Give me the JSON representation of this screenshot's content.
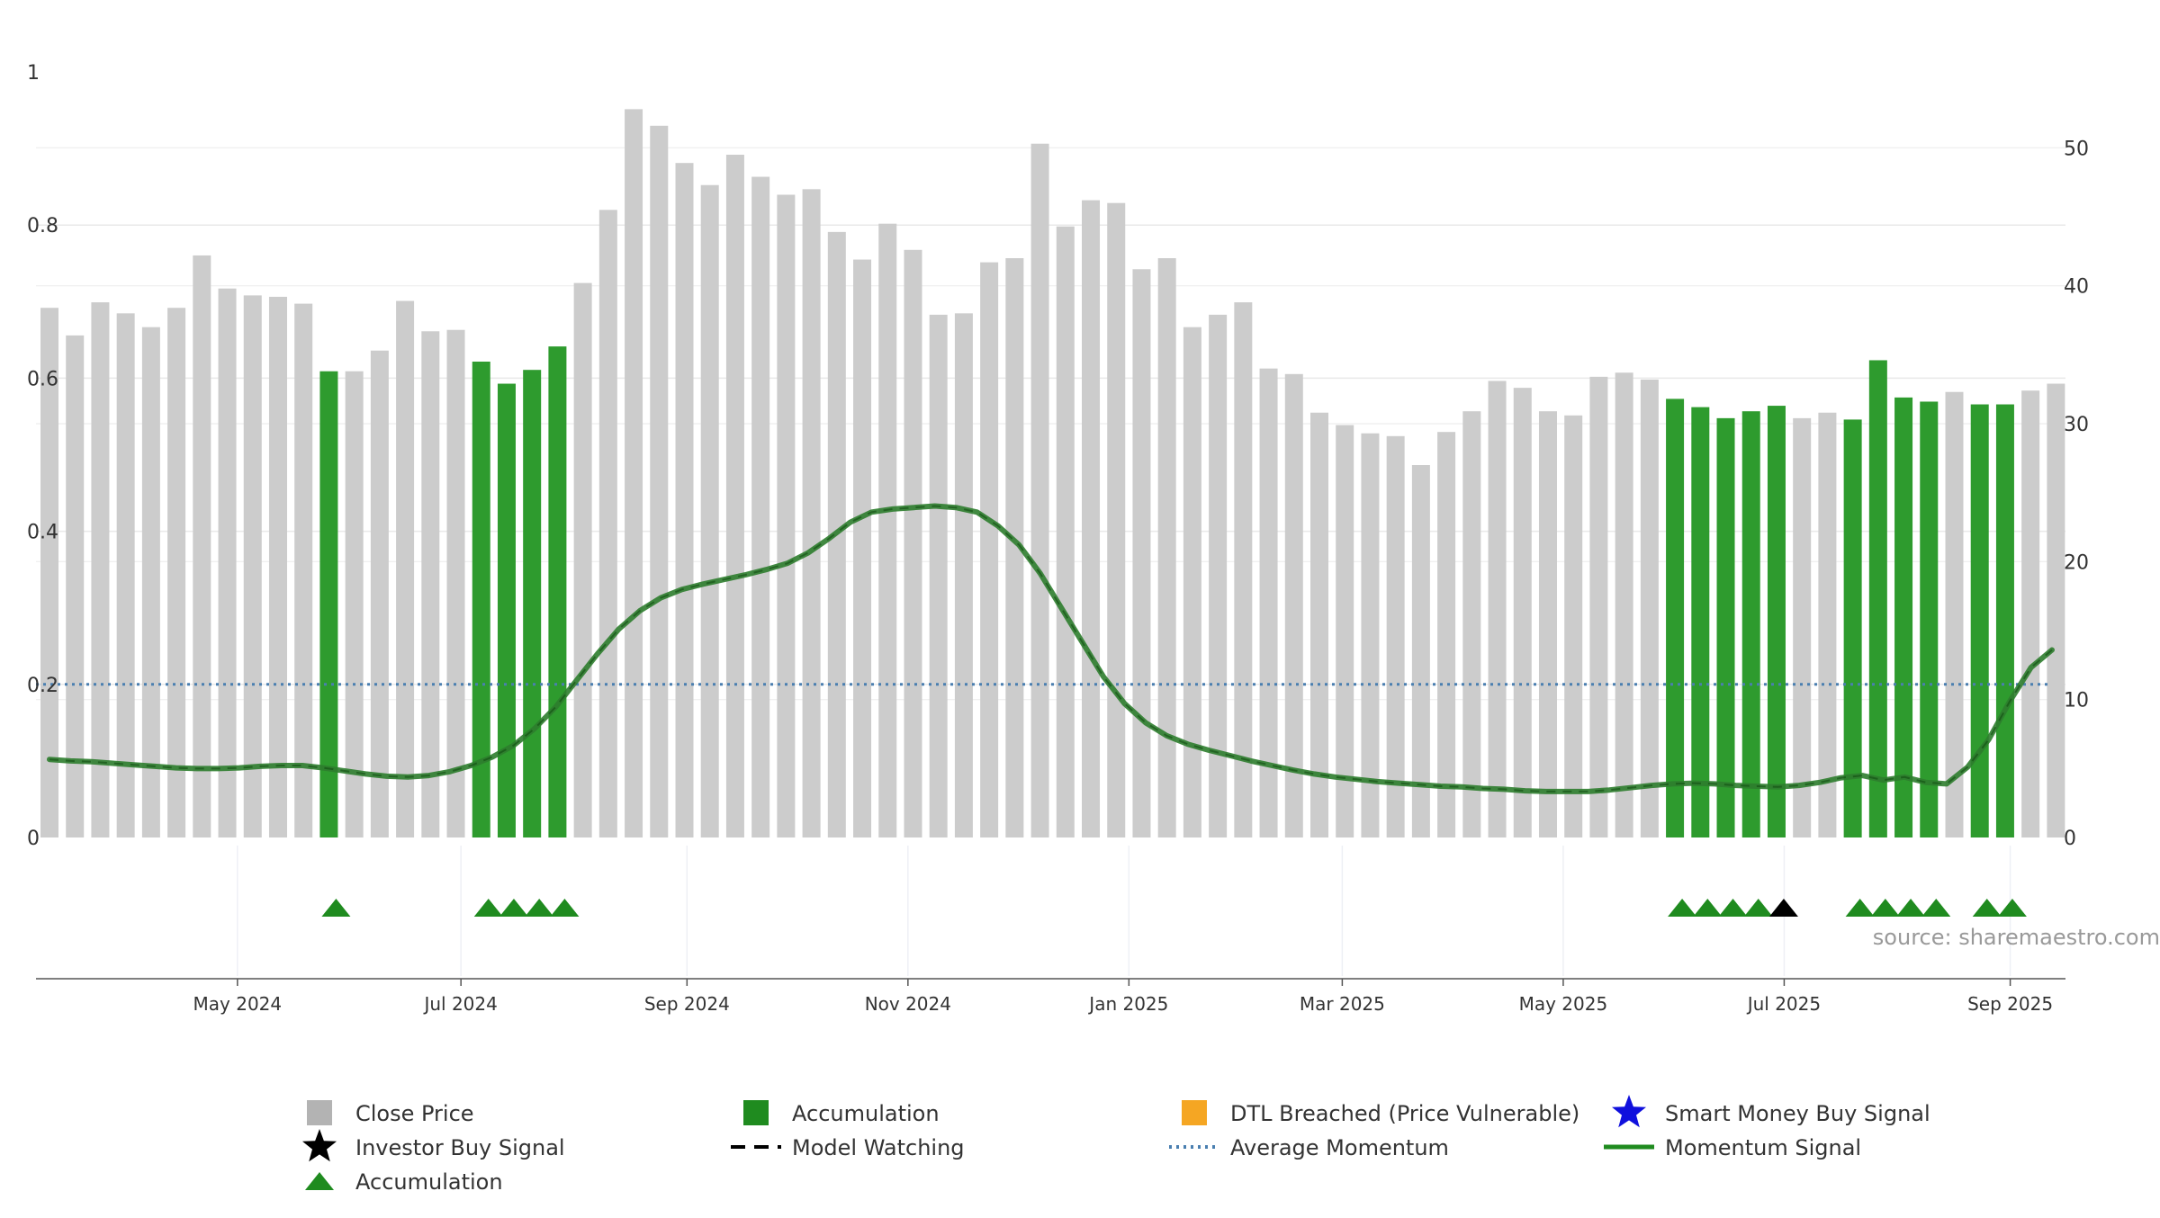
{
  "chart_data": {
    "type": "bar",
    "title": "",
    "source": "source: sharemaestro.com",
    "left_axis": {
      "ylim": [
        0,
        1
      ],
      "ticks": [
        "0",
        "0.2",
        "0.4",
        "0.6",
        "0.8",
        "1"
      ],
      "tick_values": [
        0,
        0.2,
        0.4,
        0.6,
        0.8,
        1
      ]
    },
    "right_axis": {
      "ylim": [
        0,
        55.5
      ],
      "ticks": [
        "0",
        "10",
        "20",
        "30",
        "40",
        "50"
      ],
      "tick_values": [
        0,
        10,
        20,
        30,
        40,
        50
      ]
    },
    "x_axis": {
      "n_weeks": 80,
      "date_labels": [
        "May 2024",
        "Jul 2024",
        "Sep 2024",
        "Nov 2024",
        "Jan 2025",
        "Mar 2025",
        "May 2025",
        "Jul 2025",
        "Sep 2025"
      ],
      "date_positions": [
        7.4,
        16.2,
        25.1,
        33.8,
        42.5,
        50.9,
        59.6,
        68.3,
        77.2
      ]
    },
    "series": [
      {
        "name": "Close Price",
        "type": "bar",
        "axis": "right",
        "color": "#cccccc",
        "values": [
          38.4,
          36.4,
          38.8,
          38.0,
          37.0,
          38.4,
          42.2,
          39.8,
          39.3,
          39.2,
          38.7,
          33.8,
          33.8,
          35.3,
          38.9,
          36.7,
          36.8,
          34.5,
          32.9,
          33.9,
          35.6,
          40.2,
          45.5,
          52.8,
          51.6,
          48.9,
          47.3,
          49.5,
          47.9,
          46.6,
          47.0,
          43.9,
          41.9,
          44.5,
          42.6,
          37.9,
          38.0,
          41.7,
          42.0,
          50.3,
          44.3,
          46.2,
          46.0,
          41.2,
          42.0,
          37.0,
          37.9,
          38.8,
          34.0,
          33.6,
          30.8,
          29.9,
          29.3,
          29.1,
          27.0,
          29.4,
          30.9,
          33.1,
          32.6,
          30.9,
          30.6,
          33.4,
          33.7,
          33.2,
          31.8,
          31.2,
          30.4,
          30.9,
          31.3,
          30.4,
          30.8,
          30.3,
          34.6,
          31.9,
          31.6,
          32.3,
          31.4,
          31.4,
          32.4,
          32.9
        ]
      },
      {
        "name": "Accumulation",
        "type": "bar-highlight",
        "color": "#2e9b2e",
        "week_indices": [
          11,
          17,
          18,
          19,
          20,
          64,
          65,
          66,
          67,
          68,
          71,
          72,
          73,
          74,
          76,
          77
        ]
      },
      {
        "name": "Momentum Signal",
        "type": "line",
        "axis": "left",
        "color": "#2e7d2e",
        "values": [
          0.102,
          0.1,
          0.099,
          0.097,
          0.095,
          0.093,
          0.091,
          0.09,
          0.09,
          0.091,
          0.093,
          0.094,
          0.094,
          0.091,
          0.087,
          0.083,
          0.08,
          0.079,
          0.081,
          0.086,
          0.094,
          0.105,
          0.12,
          0.142,
          0.17,
          0.205,
          0.24,
          0.272,
          0.296,
          0.313,
          0.324,
          0.331,
          0.337,
          0.343,
          0.35,
          0.358,
          0.372,
          0.391,
          0.412,
          0.425,
          0.429,
          0.431,
          0.433,
          0.431,
          0.425,
          0.407,
          0.382,
          0.345,
          0.3,
          0.255,
          0.21,
          0.175,
          0.15,
          0.133,
          0.122,
          0.114,
          0.107,
          0.1,
          0.094,
          0.088,
          0.083,
          0.079,
          0.076,
          0.073,
          0.071,
          0.069,
          0.067,
          0.066,
          0.064,
          0.063,
          0.061,
          0.06,
          0.06,
          0.06,
          0.062,
          0.065,
          0.068,
          0.07,
          0.071,
          0.07,
          0.068,
          0.067,
          0.066,
          0.068,
          0.072,
          0.078,
          0.081,
          0.075,
          0.079,
          0.072,
          0.07,
          0.092,
          0.128,
          0.178,
          0.222,
          0.245
        ]
      },
      {
        "name": "Average Momentum",
        "type": "hline",
        "axis": "left",
        "color": "#4a7fb0",
        "value": 0.2
      },
      {
        "name": "Accumulation markers",
        "type": "markers",
        "green_week_indices": [
          11,
          17,
          18,
          19,
          20,
          64,
          65,
          66,
          67,
          71,
          72,
          73,
          74,
          76,
          77
        ],
        "black_week_indices": [
          68
        ]
      }
    ],
    "legend": {
      "placement": "bottom",
      "items": [
        {
          "label": "Close Price",
          "marker": "square",
          "color": "#b3b3b3"
        },
        {
          "label": "Accumulation",
          "marker": "square",
          "color": "#1f8b1f"
        },
        {
          "label": "DTL Breached (Price Vulnerable)",
          "marker": "square",
          "color": "#f5a623"
        },
        {
          "label": "Smart Money Buy Signal",
          "marker": "star",
          "color": "#1010dd"
        },
        {
          "label": "Investor Buy Signal",
          "marker": "star",
          "color": "#000000"
        },
        {
          "label": "Model Watching",
          "marker": "dash",
          "color": "#000000"
        },
        {
          "label": "Average Momentum",
          "marker": "dotted",
          "color": "#4a7fb0"
        },
        {
          "label": "Momentum Signal",
          "marker": "line",
          "color": "#1f8b1f"
        },
        {
          "label": "Accumulation",
          "marker": "triangle",
          "color": "#1f8b1f"
        }
      ]
    }
  }
}
